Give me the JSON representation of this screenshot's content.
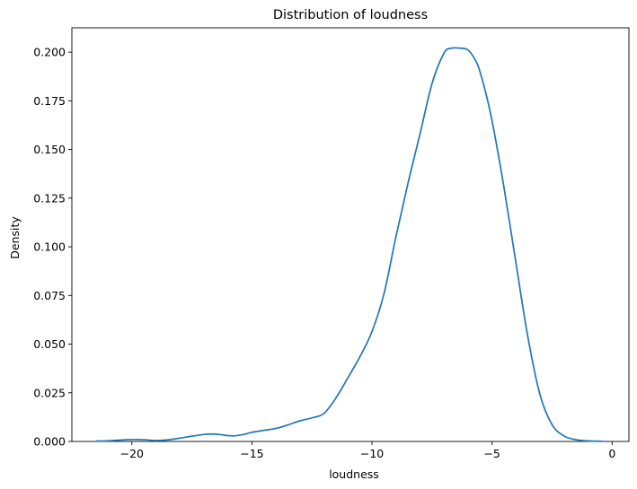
{
  "chart_data": {
    "type": "line",
    "title": "Distribution of loudness",
    "xlabel": "loudness",
    "ylabel": "Density",
    "xlim": [
      -22.5,
      0.7
    ],
    "ylim": [
      0,
      0.2125
    ],
    "xticks": [
      -20,
      -15,
      -10,
      -5,
      0
    ],
    "xtick_labels": [
      "−20",
      "−15",
      "−10",
      "−5",
      "0"
    ],
    "yticks": [
      0.0,
      0.025,
      0.05,
      0.075,
      0.1,
      0.125,
      0.15,
      0.175,
      0.2
    ],
    "ytick_labels": [
      "0.000",
      "0.025",
      "0.050",
      "0.075",
      "0.100",
      "0.125",
      "0.150",
      "0.175",
      "0.200"
    ],
    "grid": false,
    "line_color": "#1f77b4",
    "series": [
      {
        "name": "",
        "x": [
          -21.5,
          -21.0,
          -20.5,
          -20.0,
          -19.5,
          -19.0,
          -18.5,
          -18.0,
          -17.5,
          -17.0,
          -16.7,
          -16.3,
          -16.0,
          -15.7,
          -15.3,
          -15.0,
          -14.5,
          -14.0,
          -13.5,
          -13.0,
          -12.5,
          -12.0,
          -11.5,
          -11.0,
          -10.5,
          -10.0,
          -9.5,
          -9.0,
          -8.5,
          -8.0,
          -7.5,
          -7.0,
          -6.7,
          -6.4,
          -6.1,
          -5.9,
          -5.6,
          -5.3,
          -5.0,
          -4.5,
          -4.0,
          -3.5,
          -3.0,
          -2.5,
          -2.0,
          -1.5,
          -1.0,
          -0.4
        ],
        "y": [
          0.0002,
          0.0003,
          0.0007,
          0.001,
          0.0009,
          0.0005,
          0.0008,
          0.0017,
          0.0027,
          0.0036,
          0.0038,
          0.0035,
          0.003,
          0.0029,
          0.0037,
          0.0047,
          0.0057,
          0.0067,
          0.0085,
          0.0106,
          0.0121,
          0.0144,
          0.0224,
          0.0328,
          0.0436,
          0.0565,
          0.0759,
          0.1054,
          0.1327,
          0.158,
          0.1838,
          0.1995,
          0.202,
          0.2021,
          0.2017,
          0.1998,
          0.1935,
          0.1809,
          0.1647,
          0.1303,
          0.0913,
          0.0531,
          0.0239,
          0.0086,
          0.0028,
          0.0009,
          0.0003,
          0.0001
        ]
      }
    ]
  }
}
